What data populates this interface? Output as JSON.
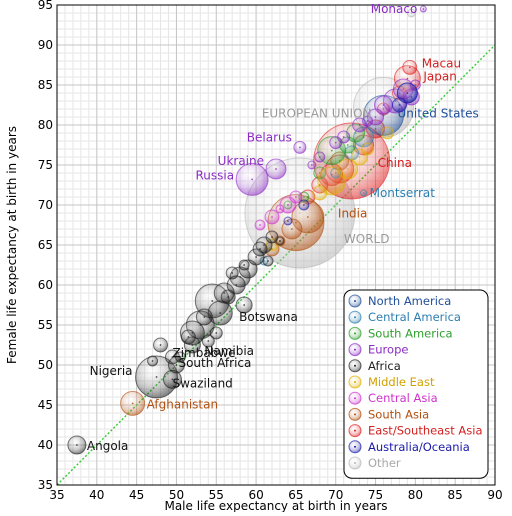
{
  "chart_data": {
    "type": "scatter",
    "xlabel": "Male life expectancy at birth in years",
    "ylabel": "Female life expectancy at birth in years",
    "xlim": [
      35,
      90
    ],
    "ylim": [
      35,
      95
    ],
    "x_ticks": [
      "35",
      "40",
      "45",
      "50",
      "55",
      "60",
      "65",
      "70",
      "75",
      "80",
      "85",
      "90"
    ],
    "y_ticks": [
      "35",
      "40",
      "45",
      "50",
      "55",
      "60",
      "65",
      "70",
      "75",
      "80",
      "85",
      "90",
      "95"
    ],
    "grid": true,
    "minor_grid": true,
    "reference_line": "y = x (dotted green diagonal)",
    "legend_position": "bottom-right",
    "legend": [
      {
        "label": "North America",
        "color": "#1f4e9a",
        "text_color": "#1f4e9a"
      },
      {
        "label": "Central America",
        "color": "#2c7fb0",
        "text_color": "#2c7fb0"
      },
      {
        "label": "South America",
        "color": "#2e9e2e",
        "text_color": "#2e9e2e"
      },
      {
        "label": "Europe",
        "color": "#8b2bc4",
        "text_color": "#8b2bc4"
      },
      {
        "label": "Africa",
        "color": "#222222",
        "text_color": "#222222"
      },
      {
        "label": "Middle East",
        "color": "#e0b000",
        "text_color": "#d2a200"
      },
      {
        "label": "Central Asia",
        "color": "#cc33cc",
        "text_color": "#cc33cc"
      },
      {
        "label": "South Asia",
        "color": "#b25010",
        "text_color": "#b25010"
      },
      {
        "label": "East/Southeast Asia",
        "color": "#e02020",
        "text_color": "#d42020"
      },
      {
        "label": "Australia/Oceania",
        "color": "#1a1aa8",
        "text_color": "#1a1aa8"
      },
      {
        "label": "Other",
        "color": "#b8b8b8",
        "text_color": "#a8a8a8"
      }
    ],
    "series": [
      {
        "name": "Other",
        "color": "#b8b8b8",
        "points": [
          {
            "x": 65.5,
            "y": 69.0,
            "r": 55,
            "label": "WORLD"
          },
          {
            "x": 76.0,
            "y": 82.2,
            "r": 30,
            "label": "EUROPEAN UNION"
          },
          {
            "x": 79.5,
            "y": 94.0,
            "r": 4
          }
        ]
      },
      {
        "name": "East/Southeast Asia",
        "color": "#e02020",
        "points": [
          {
            "x": 72.0,
            "y": 75.5,
            "r": 38,
            "label": "China"
          },
          {
            "x": 79.0,
            "y": 85.8,
            "r": 13,
            "label": "Japan"
          },
          {
            "x": 79.3,
            "y": 87.2,
            "r": 7,
            "label": "Macau"
          },
          {
            "x": 70.5,
            "y": 74.5,
            "r": 14
          },
          {
            "x": 69.5,
            "y": 73.8,
            "r": 11
          },
          {
            "x": 73.5,
            "y": 77.5,
            "r": 10
          },
          {
            "x": 75.0,
            "y": 79.5,
            "r": 9
          },
          {
            "x": 78.0,
            "y": 84.0,
            "r": 7
          },
          {
            "x": 68.0,
            "y": 72.5,
            "r": 8
          },
          {
            "x": 76.0,
            "y": 82.0,
            "r": 6
          },
          {
            "x": 66.5,
            "y": 71.0,
            "r": 7
          }
        ]
      },
      {
        "name": "South Asia",
        "color": "#b25010",
        "points": [
          {
            "x": 65.0,
            "y": 67.8,
            "r": 28,
            "label": "India"
          },
          {
            "x": 44.5,
            "y": 45.2,
            "r": 12,
            "label": "Afghanistan"
          },
          {
            "x": 66.5,
            "y": 68.5,
            "r": 16
          },
          {
            "x": 64.5,
            "y": 67.0,
            "r": 10
          },
          {
            "x": 62.0,
            "y": 64.5,
            "r": 7
          },
          {
            "x": 70.5,
            "y": 75.5,
            "r": 9
          },
          {
            "x": 63.0,
            "y": 65.5,
            "r": 5
          }
        ]
      },
      {
        "name": "North America",
        "color": "#1f4e9a",
        "points": [
          {
            "x": 76.0,
            "y": 81.2,
            "r": 20,
            "label": "United States"
          },
          {
            "x": 79.0,
            "y": 84.0,
            "r": 10
          }
        ]
      },
      {
        "name": "Central America",
        "color": "#2c7fb0",
        "points": [
          {
            "x": 73.5,
            "y": 71.5,
            "r": 3,
            "label": "Montserrat"
          },
          {
            "x": 73.5,
            "y": 78.5,
            "r": 10
          },
          {
            "x": 72.0,
            "y": 76.5,
            "r": 7
          },
          {
            "x": 70.0,
            "y": 74.0,
            "r": 5
          },
          {
            "x": 61.0,
            "y": 63.0,
            "r": 4
          }
        ]
      },
      {
        "name": "South America",
        "color": "#2e9e2e",
        "points": [
          {
            "x": 69.5,
            "y": 76.8,
            "r": 14
          },
          {
            "x": 72.5,
            "y": 79.0,
            "r": 9
          },
          {
            "x": 71.5,
            "y": 77.5,
            "r": 8
          },
          {
            "x": 68.0,
            "y": 74.0,
            "r": 6
          },
          {
            "x": 66.0,
            "y": 71.0,
            "r": 5
          },
          {
            "x": 64.0,
            "y": 70.0,
            "r": 4
          }
        ]
      },
      {
        "name": "Europe",
        "color": "#8b2bc4",
        "points": [
          {
            "x": 59.5,
            "y": 73.2,
            "r": 16,
            "label": "Russia"
          },
          {
            "x": 62.5,
            "y": 74.5,
            "r": 10,
            "label": "Ukraine"
          },
          {
            "x": 65.5,
            "y": 77.2,
            "r": 6,
            "label": "Belarus"
          },
          {
            "x": 81.0,
            "y": 94.5,
            "r": 3,
            "label": "Monaco"
          },
          {
            "x": 77.5,
            "y": 83.0,
            "r": 12
          },
          {
            "x": 78.5,
            "y": 84.5,
            "r": 10
          },
          {
            "x": 76.0,
            "y": 82.5,
            "r": 9
          },
          {
            "x": 75.0,
            "y": 81.0,
            "r": 8
          },
          {
            "x": 79.5,
            "y": 83.5,
            "r": 8
          },
          {
            "x": 73.0,
            "y": 80.0,
            "r": 7
          },
          {
            "x": 71.0,
            "y": 78.5,
            "r": 6
          },
          {
            "x": 70.0,
            "y": 77.8,
            "r": 6
          },
          {
            "x": 74.0,
            "y": 80.5,
            "r": 5
          },
          {
            "x": 68.0,
            "y": 76.0,
            "r": 5
          },
          {
            "x": 80.0,
            "y": 85.0,
            "r": 5
          },
          {
            "x": 67.0,
            "y": 75.0,
            "r": 4
          }
        ]
      },
      {
        "name": "Middle East",
        "color": "#e0b000",
        "points": [
          {
            "x": 69.5,
            "y": 73.0,
            "r": 14
          },
          {
            "x": 71.5,
            "y": 74.5,
            "r": 10
          },
          {
            "x": 73.0,
            "y": 76.0,
            "r": 8
          },
          {
            "x": 76.5,
            "y": 79.0,
            "r": 6
          },
          {
            "x": 74.0,
            "y": 77.0,
            "r": 6
          },
          {
            "x": 68.0,
            "y": 71.5,
            "r": 7
          },
          {
            "x": 62.0,
            "y": 65.0,
            "r": 6
          }
        ]
      },
      {
        "name": "Central Asia",
        "color": "#cc33cc",
        "points": [
          {
            "x": 64.0,
            "y": 70.0,
            "r": 8
          },
          {
            "x": 62.0,
            "y": 68.5,
            "r": 7
          },
          {
            "x": 65.0,
            "y": 71.0,
            "r": 6
          },
          {
            "x": 60.5,
            "y": 67.5,
            "r": 5
          },
          {
            "x": 63.0,
            "y": 69.5,
            "r": 4
          }
        ]
      },
      {
        "name": "Australia/Oceania",
        "color": "#1a1aa8",
        "points": [
          {
            "x": 79.0,
            "y": 84.0,
            "r": 10
          },
          {
            "x": 78.0,
            "y": 82.5,
            "r": 7
          },
          {
            "x": 66.0,
            "y": 70.0,
            "r": 5
          },
          {
            "x": 64.0,
            "y": 68.0,
            "r": 4
          }
        ]
      },
      {
        "name": "Africa",
        "color": "#222222",
        "points": [
          {
            "x": 37.5,
            "y": 40.0,
            "r": 9,
            "label": "Angola"
          },
          {
            "x": 47.5,
            "y": 48.5,
            "r": 21,
            "label": "Nigeria"
          },
          {
            "x": 49.5,
            "y": 48.2,
            "r": 9,
            "label": "Swaziland"
          },
          {
            "x": 50.0,
            "y": 50.0,
            "r": 8,
            "label": "South Africa"
          },
          {
            "x": 49.5,
            "y": 51.0,
            "r": 7,
            "label": "Zimbabwe"
          },
          {
            "x": 52.0,
            "y": 52.5,
            "r": 8,
            "label": "Namibia"
          },
          {
            "x": 58.5,
            "y": 57.5,
            "r": 8,
            "label": "Botswana"
          },
          {
            "x": 53.0,
            "y": 55.0,
            "r": 14
          },
          {
            "x": 54.5,
            "y": 58.0,
            "r": 17
          },
          {
            "x": 52.0,
            "y": 54.0,
            "r": 12
          },
          {
            "x": 55.5,
            "y": 56.5,
            "r": 12
          },
          {
            "x": 56.0,
            "y": 59.0,
            "r": 10
          },
          {
            "x": 58.0,
            "y": 61.0,
            "r": 10
          },
          {
            "x": 57.5,
            "y": 60.0,
            "r": 9
          },
          {
            "x": 59.0,
            "y": 62.0,
            "r": 9
          },
          {
            "x": 60.0,
            "y": 63.5,
            "r": 8
          },
          {
            "x": 61.0,
            "y": 65.0,
            "r": 8
          },
          {
            "x": 56.5,
            "y": 58.5,
            "r": 7
          },
          {
            "x": 48.0,
            "y": 52.5,
            "r": 7
          },
          {
            "x": 51.5,
            "y": 53.5,
            "r": 7
          },
          {
            "x": 53.5,
            "y": 56.0,
            "r": 8
          },
          {
            "x": 55.0,
            "y": 54.0,
            "r": 6
          },
          {
            "x": 57.0,
            "y": 61.5,
            "r": 6
          },
          {
            "x": 60.5,
            "y": 64.5,
            "r": 7
          },
          {
            "x": 62.0,
            "y": 66.0,
            "r": 6
          },
          {
            "x": 54.0,
            "y": 53.0,
            "r": 6
          },
          {
            "x": 50.5,
            "y": 51.0,
            "r": 5
          },
          {
            "x": 47.0,
            "y": 50.5,
            "r": 5
          },
          {
            "x": 58.5,
            "y": 62.5,
            "r": 5
          },
          {
            "x": 61.5,
            "y": 63.0,
            "r": 5
          },
          {
            "x": 63.0,
            "y": 65.5,
            "r": 4
          }
        ]
      }
    ]
  }
}
